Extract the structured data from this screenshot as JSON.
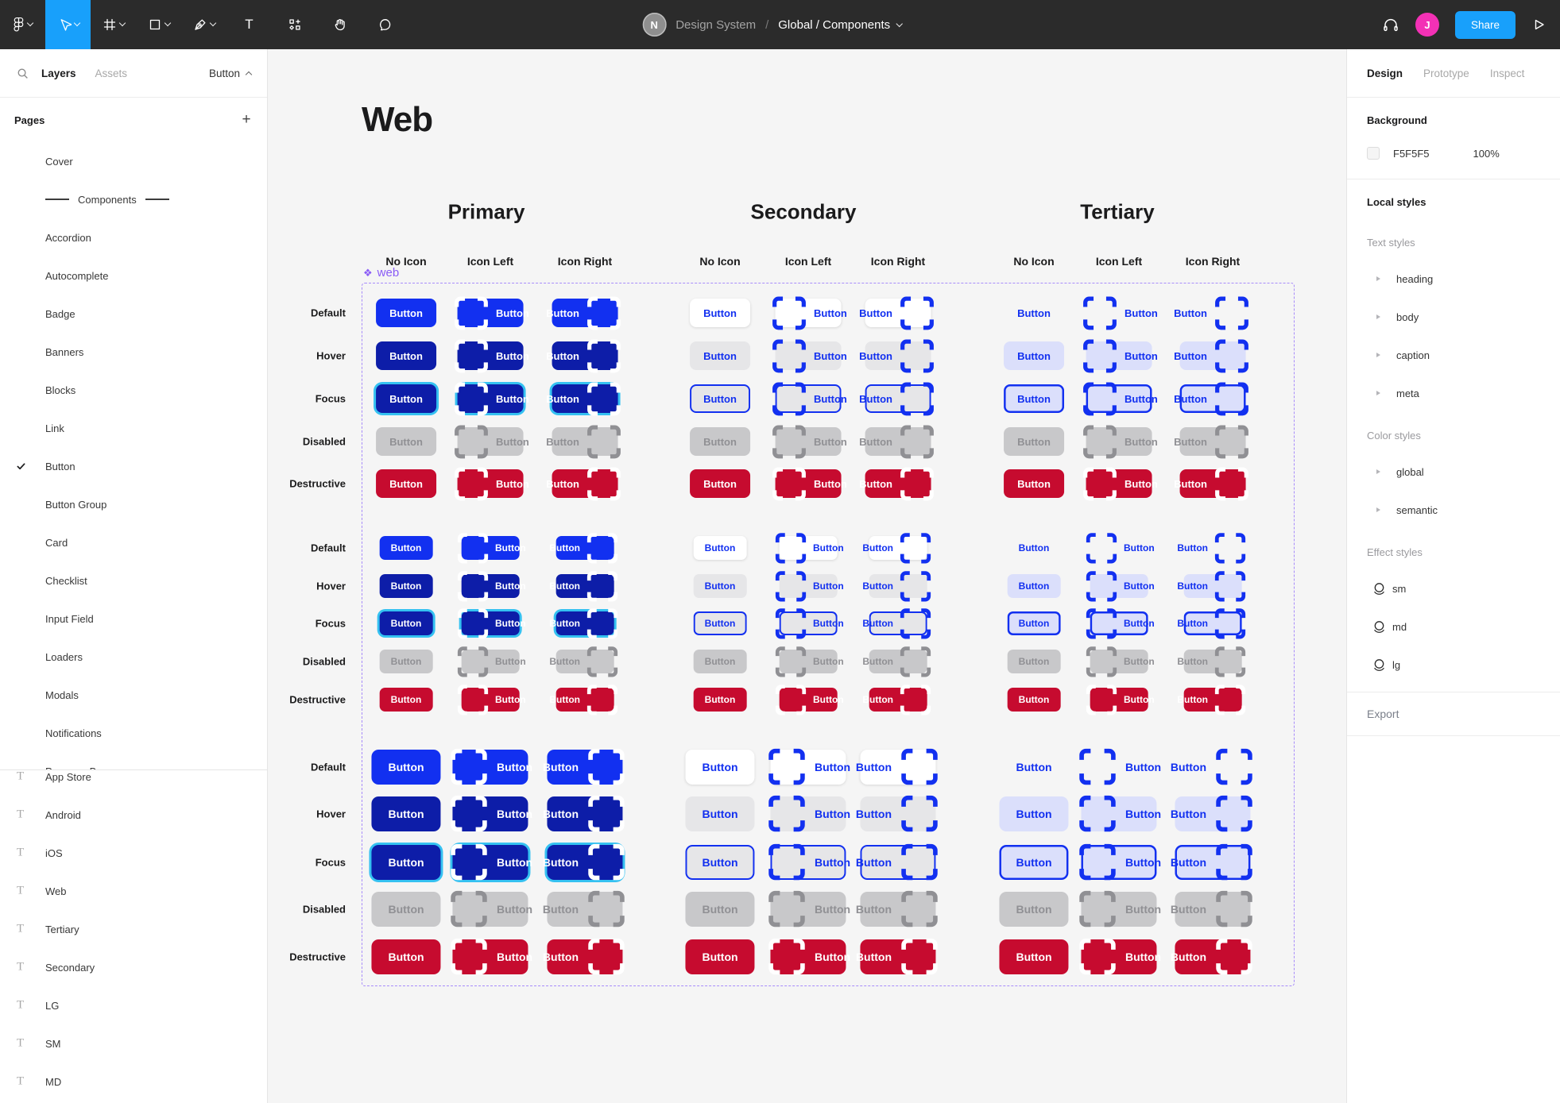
{
  "toolbar": {
    "tools": [
      {
        "name": "main-menu",
        "icon": "figma-logo",
        "dropdown": true
      },
      {
        "name": "move-tool",
        "icon": "cursor",
        "dropdown": true,
        "active": true
      },
      {
        "name": "frame-tool",
        "icon": "frame",
        "dropdown": true
      },
      {
        "name": "shape-tool",
        "icon": "rectangle",
        "dropdown": true
      },
      {
        "name": "pen-tool",
        "icon": "pen",
        "dropdown": true
      },
      {
        "name": "text-tool",
        "icon": "text"
      },
      {
        "name": "resources-tool",
        "icon": "components"
      },
      {
        "name": "hand-tool",
        "icon": "hand"
      },
      {
        "name": "comment-tool",
        "icon": "comment"
      }
    ],
    "org_avatar_initial": "N",
    "file_breadcrumb": {
      "project": "Design System",
      "separator": "/",
      "page": "Global / Components"
    },
    "share_label": "Share",
    "user_avatar_initial": "J"
  },
  "sidebar": {
    "tabs": {
      "layers": "Layers",
      "assets": "Assets"
    },
    "page_selector": "Button",
    "pages_header": "Pages",
    "pages": [
      {
        "label": "Cover"
      },
      {
        "label": "Components",
        "divider": true
      },
      {
        "label": "Accordion"
      },
      {
        "label": "Autocomplete"
      },
      {
        "label": "Badge"
      },
      {
        "label": "Banners"
      },
      {
        "label": "Blocks"
      },
      {
        "label": "Link"
      },
      {
        "label": "Button",
        "checked": true
      },
      {
        "label": "Button Group"
      },
      {
        "label": "Card"
      },
      {
        "label": "Checklist"
      },
      {
        "label": "Input Field"
      },
      {
        "label": "Loaders"
      },
      {
        "label": "Modals"
      },
      {
        "label": "Notifications"
      },
      {
        "label": "Progress Bar",
        "clipped": true
      }
    ],
    "layers": [
      {
        "label": "App Store",
        "type": "text"
      },
      {
        "label": "Android",
        "type": "text"
      },
      {
        "label": "iOS",
        "type": "text"
      },
      {
        "label": "Web",
        "type": "text"
      },
      {
        "label": "Tertiary",
        "type": "text"
      },
      {
        "label": "Secondary",
        "type": "text"
      },
      {
        "label": "LG",
        "type": "text"
      },
      {
        "label": "SM",
        "type": "text"
      },
      {
        "label": "MD",
        "type": "text"
      }
    ]
  },
  "canvas": {
    "title": "Web",
    "component_tag": "web",
    "sections": [
      "Primary",
      "Secondary",
      "Tertiary"
    ],
    "columns": [
      "No Icon",
      "Icon Left",
      "Icon Right"
    ],
    "states": [
      "Default",
      "Hover",
      "Focus",
      "Disabled",
      "Destructive"
    ],
    "button_label": "Button"
  },
  "inspector": {
    "tabs": [
      "Design",
      "Prototype",
      "Inspect"
    ],
    "active_tab": "Design",
    "background": {
      "label": "Background",
      "hex": "F5F5F5",
      "opacity": "100%"
    },
    "local_styles_label": "Local styles",
    "style_groups": [
      {
        "label": "Text styles",
        "type": "text",
        "items": [
          "heading",
          "body",
          "caption",
          "meta"
        ]
      },
      {
        "label": "Color styles",
        "type": "color",
        "items": [
          "global",
          "semantic"
        ]
      },
      {
        "label": "Effect styles",
        "type": "effect",
        "items": [
          "sm",
          "md",
          "lg"
        ]
      }
    ],
    "export_label": "Export"
  },
  "colors": {
    "background": "#F5F5F5",
    "primary": "#1230F0",
    "primary_hover": "#0D1DA8",
    "focus_ring": "#35C1F1",
    "disabled_bg": "#C8C8CA",
    "disabled_text": "#909094",
    "destructive": "#C60B2F",
    "secondary_bg": "#FFFFFF",
    "secondary_hover_bg": "#E6E6E8",
    "tertiary_hover_bg": "#DBDFFB",
    "accent_blue": "#18A0FB",
    "component_purple": "#8A5CF6",
    "avatar_pink": "#F331B5"
  }
}
